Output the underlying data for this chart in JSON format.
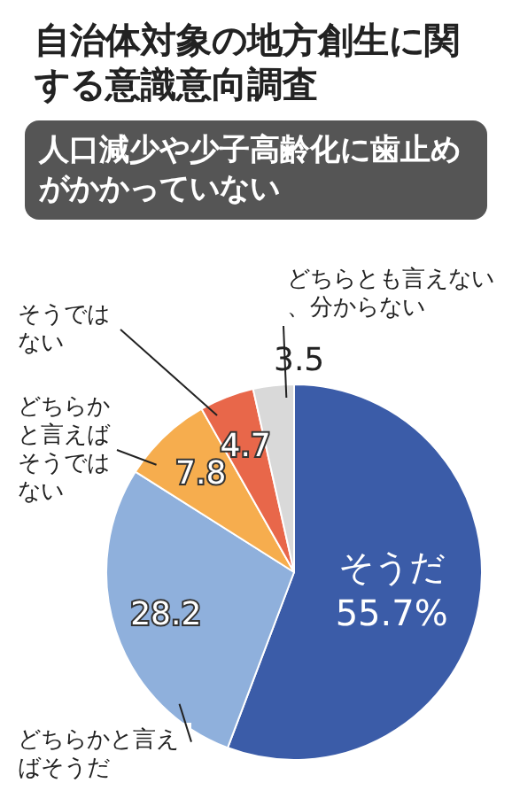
{
  "chart_data": {
    "type": "pie",
    "title": "自治体対象の地方創生に関する意識意向調査",
    "subtitle": "人口減少や少子高齢化に歯止めがかかっていない",
    "categories": [
      "そうだ",
      "どちらかと言えばそうだ",
      "どちらかと言えばそうではない",
      "そうではない",
      "どちらとも言えない、分からない"
    ],
    "values": [
      55.7,
      28.2,
      7.8,
      4.7,
      3.5
    ],
    "colors": [
      "#3b5ca8",
      "#8fb0dc",
      "#f6ad4e",
      "#e8674a",
      "#d9d9d9"
    ],
    "value_labels": [
      "55.7%",
      "28.2",
      "7.8",
      "4.7",
      "3.5"
    ]
  }
}
